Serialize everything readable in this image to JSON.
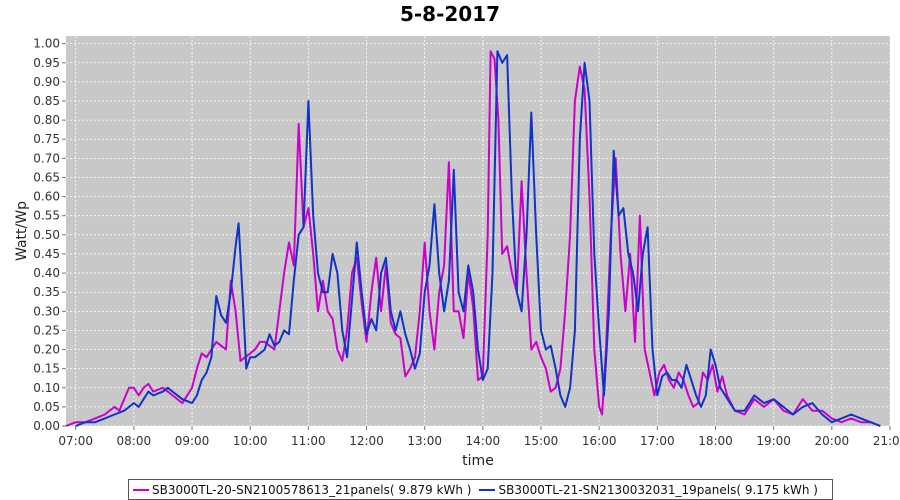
{
  "chart_data": {
    "type": "line",
    "title": "5-8-2017",
    "xlabel": "time",
    "ylabel": "Watt/Wp",
    "xlim": [
      "06:50",
      "21:00"
    ],
    "ylim": [
      0,
      1.02
    ],
    "grid": true,
    "legend_position": "bottom",
    "x_ticks": [
      "07:00",
      "08:00",
      "09:00",
      "10:00",
      "11:00",
      "12:00",
      "13:00",
      "14:00",
      "15:00",
      "16:00",
      "17:00",
      "18:00",
      "19:00",
      "20:00",
      "21:00"
    ],
    "y_ticks": [
      "0.00",
      "0.05",
      "0.10",
      "0.15",
      "0.20",
      "0.25",
      "0.30",
      "0.35",
      "0.40",
      "0.45",
      "0.50",
      "0.55",
      "0.60",
      "0.65",
      "0.70",
      "0.75",
      "0.80",
      "0.85",
      "0.90",
      "0.95",
      "1.00"
    ],
    "series": [
      {
        "name": "SB3000TL-20-SN2100578613_21panels",
        "legend_label": "SB3000TL-20-SN2100578613_21panels( 9.879 kWh )",
        "color": "#cc00cc",
        "points": [
          [
            "06:50",
            0.0
          ],
          [
            "07:00",
            0.01
          ],
          [
            "07:10",
            0.01
          ],
          [
            "07:20",
            0.02
          ],
          [
            "07:30",
            0.03
          ],
          [
            "07:40",
            0.05
          ],
          [
            "07:45",
            0.04
          ],
          [
            "07:55",
            0.1
          ],
          [
            "08:00",
            0.1
          ],
          [
            "08:05",
            0.08
          ],
          [
            "08:10",
            0.1
          ],
          [
            "08:15",
            0.11
          ],
          [
            "08:20",
            0.09
          ],
          [
            "08:30",
            0.1
          ],
          [
            "08:40",
            0.08
          ],
          [
            "08:50",
            0.06
          ],
          [
            "09:00",
            0.1
          ],
          [
            "09:05",
            0.15
          ],
          [
            "09:10",
            0.19
          ],
          [
            "09:15",
            0.18
          ],
          [
            "09:20",
            0.2
          ],
          [
            "09:25",
            0.22
          ],
          [
            "09:30",
            0.21
          ],
          [
            "09:35",
            0.2
          ],
          [
            "09:40",
            0.38
          ],
          [
            "09:45",
            0.3
          ],
          [
            "09:50",
            0.17
          ],
          [
            "09:55",
            0.18
          ],
          [
            "10:00",
            0.19
          ],
          [
            "10:05",
            0.2
          ],
          [
            "10:10",
            0.22
          ],
          [
            "10:15",
            0.22
          ],
          [
            "10:20",
            0.21
          ],
          [
            "10:25",
            0.2
          ],
          [
            "10:30",
            0.3
          ],
          [
            "10:35",
            0.4
          ],
          [
            "10:40",
            0.48
          ],
          [
            "10:45",
            0.42
          ],
          [
            "10:50",
            0.79
          ],
          [
            "10:55",
            0.52
          ],
          [
            "11:00",
            0.57
          ],
          [
            "11:05",
            0.45
          ],
          [
            "11:10",
            0.3
          ],
          [
            "11:15",
            0.38
          ],
          [
            "11:20",
            0.3
          ],
          [
            "11:25",
            0.28
          ],
          [
            "11:30",
            0.2
          ],
          [
            "11:35",
            0.17
          ],
          [
            "11:40",
            0.25
          ],
          [
            "11:45",
            0.4
          ],
          [
            "11:50",
            0.44
          ],
          [
            "11:55",
            0.32
          ],
          [
            "12:00",
            0.22
          ],
          [
            "12:05",
            0.35
          ],
          [
            "12:10",
            0.44
          ],
          [
            "12:15",
            0.3
          ],
          [
            "12:20",
            0.42
          ],
          [
            "12:25",
            0.27
          ],
          [
            "12:30",
            0.24
          ],
          [
            "12:35",
            0.23
          ],
          [
            "12:40",
            0.13
          ],
          [
            "12:45",
            0.15
          ],
          [
            "12:50",
            0.18
          ],
          [
            "12:55",
            0.3
          ],
          [
            "13:00",
            0.48
          ],
          [
            "13:05",
            0.3
          ],
          [
            "13:10",
            0.2
          ],
          [
            "13:15",
            0.35
          ],
          [
            "13:20",
            0.42
          ],
          [
            "13:25",
            0.69
          ],
          [
            "13:30",
            0.3
          ],
          [
            "13:35",
            0.3
          ],
          [
            "13:40",
            0.23
          ],
          [
            "13:45",
            0.4
          ],
          [
            "13:50",
            0.31
          ],
          [
            "13:55",
            0.12
          ],
          [
            "14:00",
            0.13
          ],
          [
            "14:05",
            0.5
          ],
          [
            "14:08",
            0.98
          ],
          [
            "14:12",
            0.96
          ],
          [
            "14:16",
            0.8
          ],
          [
            "14:20",
            0.45
          ],
          [
            "14:25",
            0.47
          ],
          [
            "14:30",
            0.4
          ],
          [
            "14:35",
            0.35
          ],
          [
            "14:40",
            0.64
          ],
          [
            "14:45",
            0.4
          ],
          [
            "14:50",
            0.2
          ],
          [
            "14:55",
            0.22
          ],
          [
            "15:00",
            0.18
          ],
          [
            "15:05",
            0.15
          ],
          [
            "15:10",
            0.09
          ],
          [
            "15:15",
            0.1
          ],
          [
            "15:20",
            0.15
          ],
          [
            "15:25",
            0.3
          ],
          [
            "15:30",
            0.5
          ],
          [
            "15:35",
            0.85
          ],
          [
            "15:40",
            0.94
          ],
          [
            "15:45",
            0.88
          ],
          [
            "15:50",
            0.6
          ],
          [
            "15:55",
            0.2
          ],
          [
            "16:00",
            0.05
          ],
          [
            "16:03",
            0.03
          ],
          [
            "16:07",
            0.2
          ],
          [
            "16:12",
            0.5
          ],
          [
            "16:17",
            0.7
          ],
          [
            "16:22",
            0.45
          ],
          [
            "16:27",
            0.3
          ],
          [
            "16:32",
            0.45
          ],
          [
            "16:37",
            0.22
          ],
          [
            "16:42",
            0.55
          ],
          [
            "16:47",
            0.2
          ],
          [
            "16:52",
            0.14
          ],
          [
            "16:57",
            0.08
          ],
          [
            "17:02",
            0.14
          ],
          [
            "17:07",
            0.16
          ],
          [
            "17:12",
            0.12
          ],
          [
            "17:17",
            0.1
          ],
          [
            "17:22",
            0.14
          ],
          [
            "17:27",
            0.12
          ],
          [
            "17:32",
            0.08
          ],
          [
            "17:37",
            0.05
          ],
          [
            "17:42",
            0.06
          ],
          [
            "17:47",
            0.14
          ],
          [
            "17:52",
            0.12
          ],
          [
            "17:57",
            0.16
          ],
          [
            "18:02",
            0.09
          ],
          [
            "18:07",
            0.13
          ],
          [
            "18:12",
            0.08
          ],
          [
            "18:20",
            0.04
          ],
          [
            "18:30",
            0.03
          ],
          [
            "18:40",
            0.07
          ],
          [
            "18:50",
            0.05
          ],
          [
            "19:00",
            0.07
          ],
          [
            "19:10",
            0.04
          ],
          [
            "19:20",
            0.03
          ],
          [
            "19:30",
            0.07
          ],
          [
            "19:40",
            0.04
          ],
          [
            "19:50",
            0.04
          ],
          [
            "20:00",
            0.02
          ],
          [
            "20:10",
            0.01
          ],
          [
            "20:20",
            0.02
          ],
          [
            "20:30",
            0.01
          ],
          [
            "20:40",
            0.01
          ],
          [
            "20:50",
            0.0
          ]
        ]
      },
      {
        "name": "SB3000TL-21-SN2130032031_19panels",
        "legend_label": "SB3000TL-21-SN2130032031_19panels( 9.175 kWh )",
        "color": "#1033c8",
        "points": [
          [
            "07:00",
            0.0
          ],
          [
            "07:10",
            0.01
          ],
          [
            "07:20",
            0.01
          ],
          [
            "07:30",
            0.02
          ],
          [
            "07:40",
            0.03
          ],
          [
            "07:50",
            0.04
          ],
          [
            "08:00",
            0.06
          ],
          [
            "08:05",
            0.05
          ],
          [
            "08:10",
            0.07
          ],
          [
            "08:15",
            0.09
          ],
          [
            "08:20",
            0.08
          ],
          [
            "08:30",
            0.09
          ],
          [
            "08:35",
            0.1
          ],
          [
            "08:40",
            0.09
          ],
          [
            "08:45",
            0.08
          ],
          [
            "08:50",
            0.07
          ],
          [
            "09:00",
            0.06
          ],
          [
            "09:05",
            0.08
          ],
          [
            "09:10",
            0.12
          ],
          [
            "09:15",
            0.14
          ],
          [
            "09:20",
            0.18
          ],
          [
            "09:25",
            0.34
          ],
          [
            "09:30",
            0.29
          ],
          [
            "09:35",
            0.27
          ],
          [
            "09:40",
            0.35
          ],
          [
            "09:45",
            0.47
          ],
          [
            "09:48",
            0.53
          ],
          [
            "09:52",
            0.35
          ],
          [
            "09:56",
            0.15
          ],
          [
            "10:00",
            0.18
          ],
          [
            "10:05",
            0.18
          ],
          [
            "10:10",
            0.19
          ],
          [
            "10:15",
            0.2
          ],
          [
            "10:20",
            0.24
          ],
          [
            "10:25",
            0.21
          ],
          [
            "10:30",
            0.22
          ],
          [
            "10:35",
            0.25
          ],
          [
            "10:40",
            0.24
          ],
          [
            "10:45",
            0.38
          ],
          [
            "10:50",
            0.5
          ],
          [
            "10:55",
            0.52
          ],
          [
            "11:00",
            0.85
          ],
          [
            "11:05",
            0.55
          ],
          [
            "11:10",
            0.4
          ],
          [
            "11:15",
            0.35
          ],
          [
            "11:20",
            0.35
          ],
          [
            "11:25",
            0.45
          ],
          [
            "11:30",
            0.4
          ],
          [
            "11:35",
            0.25
          ],
          [
            "11:40",
            0.18
          ],
          [
            "11:45",
            0.33
          ],
          [
            "11:50",
            0.48
          ],
          [
            "11:55",
            0.35
          ],
          [
            "12:00",
            0.24
          ],
          [
            "12:05",
            0.28
          ],
          [
            "12:10",
            0.25
          ],
          [
            "12:15",
            0.4
          ],
          [
            "12:20",
            0.44
          ],
          [
            "12:25",
            0.3
          ],
          [
            "12:30",
            0.25
          ],
          [
            "12:35",
            0.3
          ],
          [
            "12:40",
            0.24
          ],
          [
            "12:45",
            0.2
          ],
          [
            "12:50",
            0.15
          ],
          [
            "12:55",
            0.19
          ],
          [
            "13:00",
            0.35
          ],
          [
            "13:05",
            0.42
          ],
          [
            "13:10",
            0.58
          ],
          [
            "13:15",
            0.4
          ],
          [
            "13:20",
            0.3
          ],
          [
            "13:25",
            0.38
          ],
          [
            "13:30",
            0.67
          ],
          [
            "13:35",
            0.35
          ],
          [
            "13:40",
            0.3
          ],
          [
            "13:45",
            0.42
          ],
          [
            "13:50",
            0.35
          ],
          [
            "13:55",
            0.2
          ],
          [
            "14:00",
            0.12
          ],
          [
            "14:05",
            0.15
          ],
          [
            "14:10",
            0.4
          ],
          [
            "14:15",
            0.98
          ],
          [
            "14:20",
            0.95
          ],
          [
            "14:25",
            0.97
          ],
          [
            "14:30",
            0.6
          ],
          [
            "14:35",
            0.35
          ],
          [
            "14:40",
            0.3
          ],
          [
            "14:45",
            0.5
          ],
          [
            "14:50",
            0.82
          ],
          [
            "14:55",
            0.5
          ],
          [
            "15:00",
            0.25
          ],
          [
            "15:05",
            0.2
          ],
          [
            "15:10",
            0.21
          ],
          [
            "15:15",
            0.15
          ],
          [
            "15:20",
            0.08
          ],
          [
            "15:25",
            0.05
          ],
          [
            "15:30",
            0.1
          ],
          [
            "15:35",
            0.25
          ],
          [
            "15:40",
            0.75
          ],
          [
            "15:45",
            0.95
          ],
          [
            "15:50",
            0.85
          ],
          [
            "15:55",
            0.45
          ],
          [
            "16:00",
            0.25
          ],
          [
            "16:05",
            0.08
          ],
          [
            "16:10",
            0.3
          ],
          [
            "16:15",
            0.72
          ],
          [
            "16:20",
            0.55
          ],
          [
            "16:25",
            0.57
          ],
          [
            "16:30",
            0.45
          ],
          [
            "16:35",
            0.4
          ],
          [
            "16:40",
            0.3
          ],
          [
            "16:45",
            0.45
          ],
          [
            "16:50",
            0.52
          ],
          [
            "16:55",
            0.2
          ],
          [
            "17:00",
            0.08
          ],
          [
            "17:05",
            0.13
          ],
          [
            "17:10",
            0.14
          ],
          [
            "17:15",
            0.12
          ],
          [
            "17:20",
            0.12
          ],
          [
            "17:25",
            0.1
          ],
          [
            "17:30",
            0.16
          ],
          [
            "17:35",
            0.12
          ],
          [
            "17:40",
            0.08
          ],
          [
            "17:45",
            0.05
          ],
          [
            "17:50",
            0.08
          ],
          [
            "17:55",
            0.2
          ],
          [
            "18:00",
            0.16
          ],
          [
            "18:05",
            0.1
          ],
          [
            "18:10",
            0.08
          ],
          [
            "18:15",
            0.06
          ],
          [
            "18:20",
            0.04
          ],
          [
            "18:30",
            0.04
          ],
          [
            "18:40",
            0.08
          ],
          [
            "18:50",
            0.06
          ],
          [
            "19:00",
            0.07
          ],
          [
            "19:10",
            0.05
          ],
          [
            "19:20",
            0.03
          ],
          [
            "19:30",
            0.05
          ],
          [
            "19:40",
            0.06
          ],
          [
            "19:50",
            0.03
          ],
          [
            "20:00",
            0.01
          ],
          [
            "20:10",
            0.02
          ],
          [
            "20:20",
            0.03
          ],
          [
            "20:30",
            0.02
          ],
          [
            "20:40",
            0.01
          ],
          [
            "20:50",
            0.0
          ]
        ]
      }
    ]
  }
}
